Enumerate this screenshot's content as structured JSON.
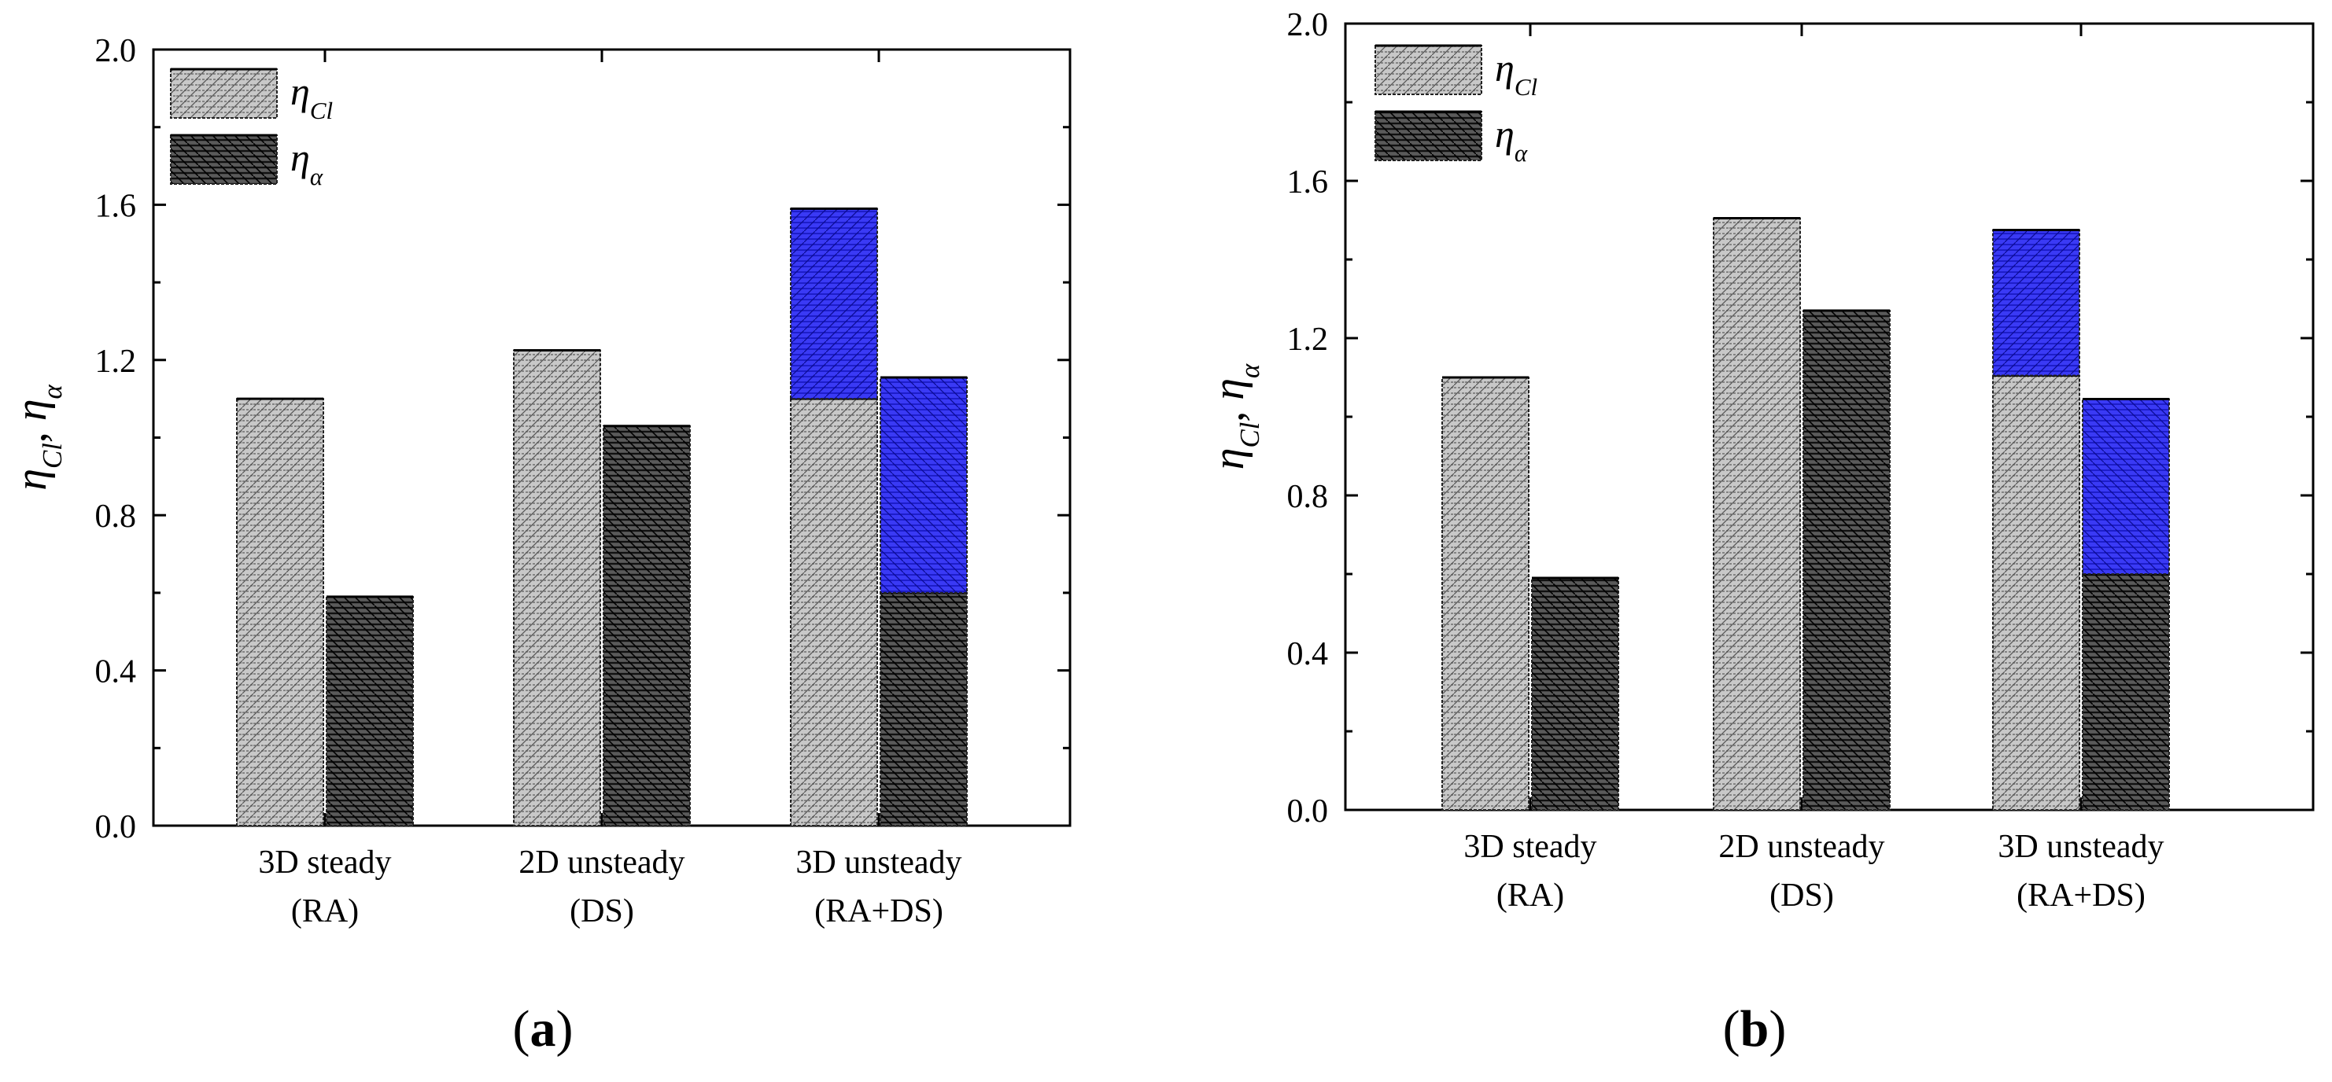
{
  "figure": {
    "colors": {
      "base_bar_fill": "#bdbdbd",
      "alpha_bar_fill": "#3c3c3c",
      "increment_fill": "#2b2bf2",
      "axis": "#000000"
    }
  },
  "chart_data": [
    {
      "id": "a",
      "type": "bar",
      "stacked_increments": true,
      "panel_label_letter": "a",
      "panel_label_open": "(",
      "panel_label_close": ")",
      "ylabel_eta": "η",
      "ylabel_cl_sub": "Cl",
      "ylabel_sep": ", ",
      "ylabel_alpha_sub": "α",
      "ylim": [
        0,
        2.0
      ],
      "yticks": [
        "0.0",
        "0.4",
        "0.8",
        "1.2",
        "1.6",
        "2.0"
      ],
      "categories": [
        {
          "line1": "3D steady",
          "line2": "(RA)"
        },
        {
          "line1": "2D unsteady",
          "line2": "(DS)"
        },
        {
          "line1": "3D unsteady",
          "line2": "(RA+DS)"
        }
      ],
      "legend": {
        "placement": "top-left",
        "entries": [
          {
            "symbol": "η",
            "sub": "Cl",
            "series": "eta_cl"
          },
          {
            "symbol": "η",
            "sub": "α",
            "series": "eta_alpha"
          }
        ]
      },
      "series": [
        {
          "key": "eta_cl",
          "base": [
            1.1,
            1.225,
            1.1
          ],
          "increment": [
            0,
            0,
            0.49
          ]
        },
        {
          "key": "eta_alpha",
          "base": [
            0.59,
            1.03,
            0.6
          ],
          "increment": [
            0,
            0,
            0.555
          ]
        }
      ]
    },
    {
      "id": "b",
      "type": "bar",
      "stacked_increments": true,
      "panel_label_letter": "b",
      "panel_label_open": "(",
      "panel_label_close": ")",
      "ylabel_eta": "η",
      "ylabel_cl_sub": "Cl",
      "ylabel_sep": ", ",
      "ylabel_alpha_sub": "α",
      "ylim": [
        0,
        2.0
      ],
      "yticks": [
        "0.0",
        "0.4",
        "0.8",
        "1.2",
        "1.6",
        "2.0"
      ],
      "categories": [
        {
          "line1": "3D steady",
          "line2": "(RA)"
        },
        {
          "line1": "2D unsteady",
          "line2": "(DS)"
        },
        {
          "line1": "3D unsteady",
          "line2": "(RA+DS)"
        }
      ],
      "legend": {
        "placement": "top-left",
        "entries": [
          {
            "symbol": "η",
            "sub": "Cl",
            "series": "eta_cl"
          },
          {
            "symbol": "η",
            "sub": "α",
            "series": "eta_alpha"
          }
        ]
      },
      "series": [
        {
          "key": "eta_cl",
          "base": [
            1.1,
            1.505,
            1.105
          ],
          "increment": [
            0,
            0,
            0.37
          ]
        },
        {
          "key": "eta_alpha",
          "base": [
            0.59,
            1.27,
            0.6
          ],
          "increment": [
            0,
            0,
            0.445
          ]
        }
      ]
    }
  ]
}
